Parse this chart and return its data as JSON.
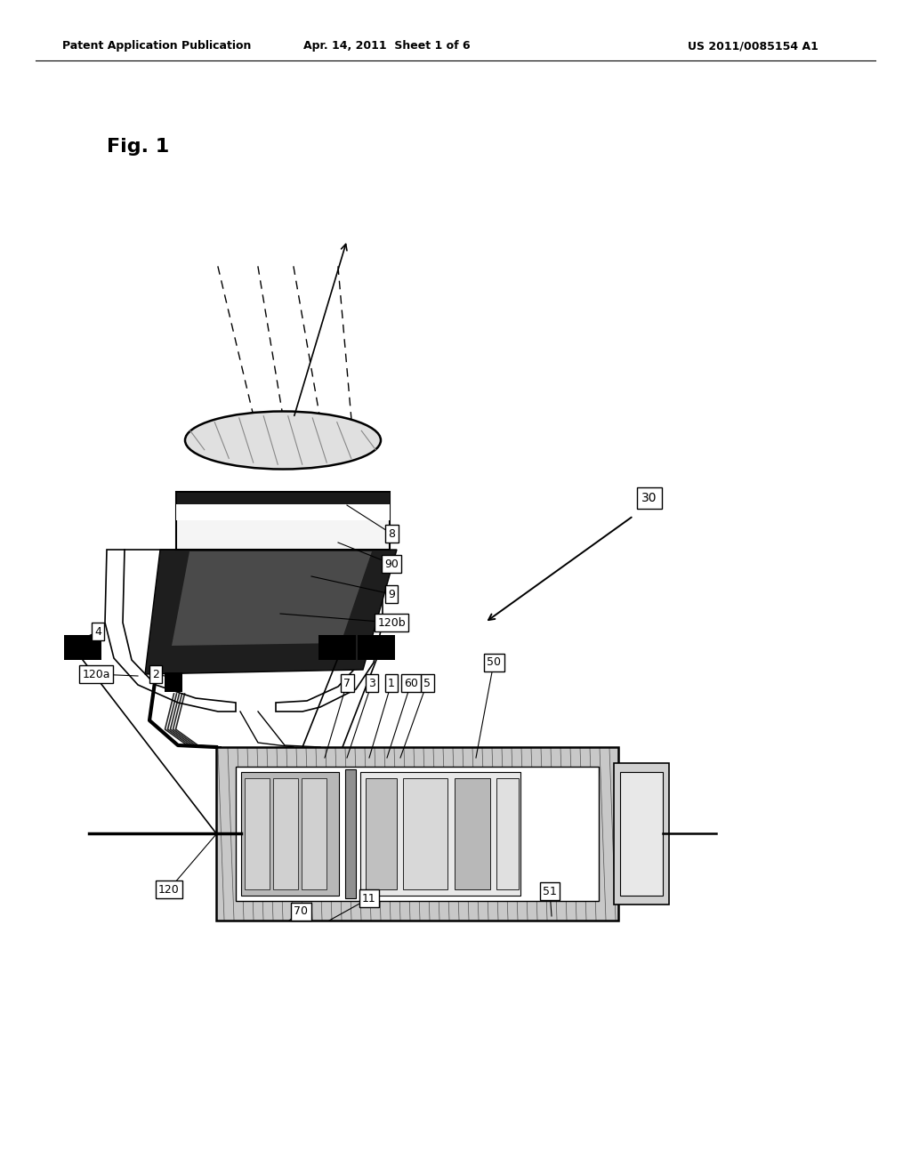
{
  "bg_color": "#ffffff",
  "header_left": "Patent Application Publication",
  "header_center": "Apr. 14, 2011  Sheet 1 of 6",
  "header_right": "US 2011/0085154 A1",
  "fig_label": "Fig. 1"
}
